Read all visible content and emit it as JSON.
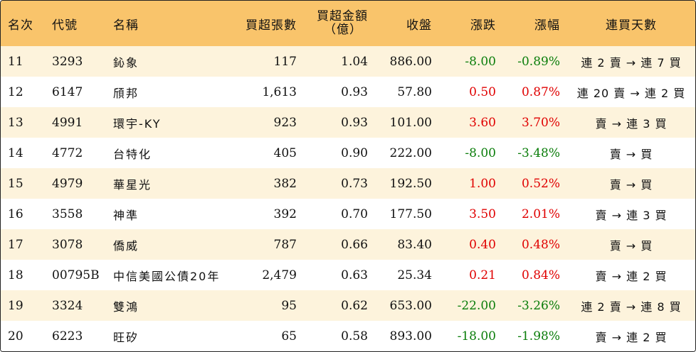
{
  "header": {
    "rank": "名次",
    "code": "代號",
    "name": "名稱",
    "net_buy_lots": "買超張數",
    "net_buy_amount_line1": "買超金額",
    "net_buy_amount_line2": "（億）",
    "close": "收盤",
    "change": "漲跌",
    "change_pct": "漲幅",
    "streak": "連買天數"
  },
  "colors": {
    "header_bg": "#f9c46b",
    "odd_row_bg": "#fdf3dc",
    "up": "#e00000",
    "down": "#0a7d0a"
  },
  "rows": [
    {
      "rank": "11",
      "code": "3293",
      "name": "鈊象",
      "lots": "117",
      "amount": "1.04",
      "close": "886.00",
      "change": "-8.00",
      "pct": "-0.89%",
      "streak": "連 2 賣 → 連 7 買",
      "dir": "down"
    },
    {
      "rank": "12",
      "code": "6147",
      "name": "頎邦",
      "lots": "1,613",
      "amount": "0.93",
      "close": "57.80",
      "change": "0.50",
      "pct": "0.87%",
      "streak": "連 20 賣 → 連 2 買",
      "dir": "up"
    },
    {
      "rank": "13",
      "code": "4991",
      "name": "環宇-KY",
      "lots": "923",
      "amount": "0.93",
      "close": "101.00",
      "change": "3.60",
      "pct": "3.70%",
      "streak": "賣 → 連 3 買",
      "dir": "up"
    },
    {
      "rank": "14",
      "code": "4772",
      "name": "台特化",
      "lots": "405",
      "amount": "0.90",
      "close": "222.00",
      "change": "-8.00",
      "pct": "-3.48%",
      "streak": "賣 → 買",
      "dir": "down"
    },
    {
      "rank": "15",
      "code": "4979",
      "name": "華星光",
      "lots": "382",
      "amount": "0.73",
      "close": "192.50",
      "change": "1.00",
      "pct": "0.52%",
      "streak": "賣 → 買",
      "dir": "up"
    },
    {
      "rank": "16",
      "code": "3558",
      "name": "神準",
      "lots": "392",
      "amount": "0.70",
      "close": "177.50",
      "change": "3.50",
      "pct": "2.01%",
      "streak": "賣 → 連 3 買",
      "dir": "up"
    },
    {
      "rank": "17",
      "code": "3078",
      "name": "僑威",
      "lots": "787",
      "amount": "0.66",
      "close": "83.40",
      "change": "0.40",
      "pct": "0.48%",
      "streak": "賣 → 買",
      "dir": "up"
    },
    {
      "rank": "18",
      "code": "00795B",
      "name": "中信美國公債20年",
      "lots": "2,479",
      "amount": "0.63",
      "close": "25.34",
      "change": "0.21",
      "pct": "0.84%",
      "streak": "賣 → 連 2 買",
      "dir": "up"
    },
    {
      "rank": "19",
      "code": "3324",
      "name": "雙鴻",
      "lots": "95",
      "amount": "0.62",
      "close": "653.00",
      "change": "-22.00",
      "pct": "-3.26%",
      "streak": "連 2 賣 → 連 8 買",
      "dir": "down"
    },
    {
      "rank": "20",
      "code": "6223",
      "name": "旺矽",
      "lots": "65",
      "amount": "0.58",
      "close": "893.00",
      "change": "-18.00",
      "pct": "-1.98%",
      "streak": "賣 → 連 2 買",
      "dir": "down"
    }
  ]
}
